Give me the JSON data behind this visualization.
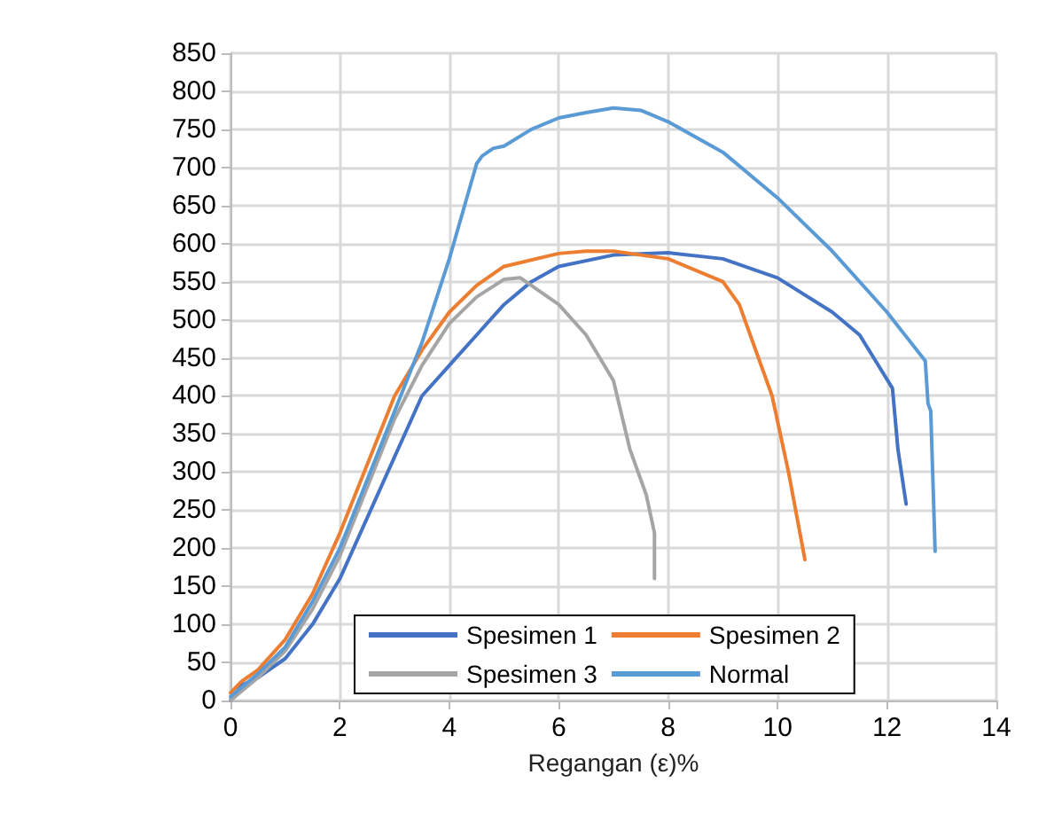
{
  "chart_data": {
    "type": "line",
    "xlabel": "Regangan (ε)%",
    "xlim": [
      0,
      14
    ],
    "xticks": [
      0,
      2,
      4,
      6,
      8,
      10,
      12,
      14
    ],
    "ylim": [
      0,
      850
    ],
    "yticks": [
      0,
      50,
      100,
      150,
      200,
      250,
      300,
      350,
      400,
      450,
      500,
      550,
      600,
      650,
      700,
      750,
      800,
      850
    ],
    "grid": true,
    "legend": "bottom",
    "marker": "none",
    "line_style": "solid",
    "series": [
      {
        "name": "Spesimen 1",
        "color": "#4472c4",
        "x": [
          0,
          0.1,
          0.2,
          0.5,
          1,
          1.5,
          2,
          2.5,
          3,
          3.5,
          4,
          4.5,
          5,
          5.5,
          6,
          7,
          8,
          9,
          10,
          11,
          11.5,
          12.1,
          12.2,
          12.35
        ],
        "values": [
          0,
          10,
          20,
          30,
          55,
          100,
          160,
          240,
          320,
          400,
          440,
          480,
          520,
          550,
          570,
          585,
          588,
          580,
          555,
          510,
          480,
          410,
          330,
          258
        ]
      },
      {
        "name": "Spesimen 2",
        "color": "#ed7d31",
        "x": [
          0,
          0.2,
          0.5,
          1,
          1.5,
          2,
          2.5,
          3,
          3.5,
          4,
          4.5,
          5,
          6,
          6.5,
          7,
          8,
          9,
          9.3,
          9.9,
          10.2,
          10.5
        ],
        "values": [
          10,
          25,
          40,
          80,
          140,
          220,
          310,
          400,
          460,
          510,
          545,
          570,
          587,
          590,
          590,
          580,
          550,
          520,
          400,
          300,
          185
        ]
      },
      {
        "name": "Spesimen 3",
        "color": "#a5a5a5",
        "x": [
          0,
          0.5,
          1,
          1.5,
          2,
          2.5,
          3,
          3.5,
          4,
          4.5,
          5,
          5.3,
          6,
          6.5,
          7,
          7.3,
          7.6,
          7.75,
          7.75
        ],
        "values": [
          0,
          30,
          65,
          120,
          190,
          280,
          370,
          440,
          495,
          530,
          553,
          555,
          520,
          480,
          420,
          330,
          270,
          220,
          160
        ]
      },
      {
        "name": "Normal",
        "color": "#5b9bd5",
        "x": [
          0,
          0.5,
          1,
          1.5,
          2,
          2.5,
          3,
          3.5,
          4,
          4.5,
          4.6,
          4.8,
          5,
          5.5,
          6,
          6.5,
          7,
          7.5,
          8,
          9,
          10,
          11,
          12,
          12.7,
          12.75,
          12.8,
          12.88
        ],
        "values": [
          5,
          35,
          70,
          130,
          200,
          290,
          380,
          470,
          580,
          705,
          715,
          725,
          728,
          750,
          765,
          772,
          778,
          775,
          760,
          720,
          660,
          590,
          510,
          446,
          390,
          380,
          196
        ]
      }
    ]
  }
}
